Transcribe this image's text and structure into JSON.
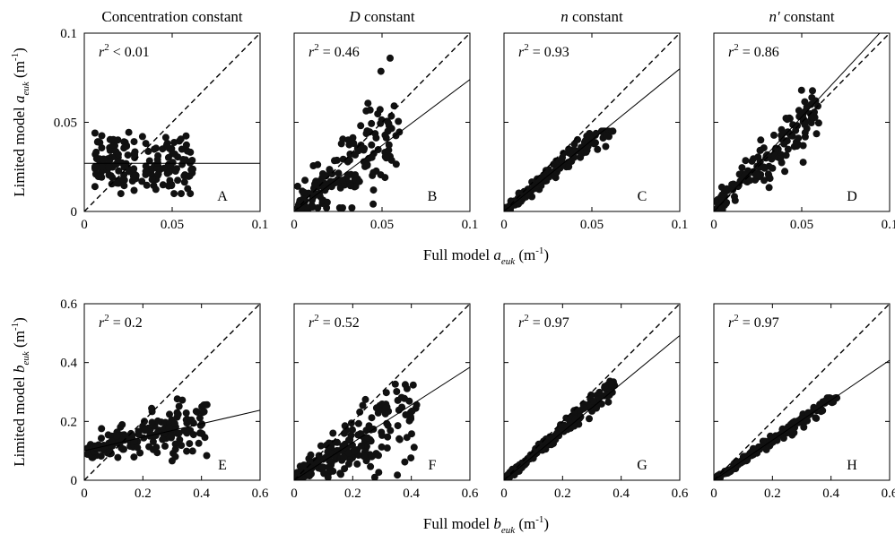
{
  "column_titles": [
    {
      "prefix": "",
      "ital": "",
      "suffix": "Concentration constant"
    },
    {
      "prefix": "",
      "ital": "D",
      "suffix": " constant"
    },
    {
      "prefix": "",
      "ital": "n",
      "suffix": " constant"
    },
    {
      "prefix": "",
      "ital": "n′",
      "suffix": " constant"
    }
  ],
  "rows": [
    {
      "ylabel": {
        "pre": "Limited model ",
        "var": "a",
        "sub": "euk",
        "unit": " (m",
        "sup": "-1",
        "close": ")"
      },
      "xlabel": {
        "pre": "Full model ",
        "var": "a",
        "sub": "euk",
        "unit": " (m",
        "sup": "-1",
        "close": ")"
      },
      "ylim": [
        0,
        0.1
      ],
      "xlim": [
        0,
        0.1
      ],
      "yticks": [
        {
          "v": 0,
          "t": "0"
        },
        {
          "v": 0.05,
          "t": "0.05"
        },
        {
          "v": 0.1,
          "t": "0.1"
        }
      ],
      "xticks": [
        {
          "v": 0,
          "t": "0"
        },
        {
          "v": 0.05,
          "t": "0.05"
        },
        {
          "v": 0.1,
          "t": "0.1"
        }
      ]
    },
    {
      "ylabel": {
        "pre": "Limited model ",
        "var": "b",
        "sub": "euk",
        "unit": " (m",
        "sup": "-1",
        "close": ")"
      },
      "xlabel": {
        "pre": "Full model ",
        "var": "b",
        "sub": "euk",
        "unit": " (m",
        "sup": "-1",
        "close": ")"
      },
      "ylim": [
        0,
        0.6
      ],
      "xlim": [
        0,
        0.6
      ],
      "yticks": [
        {
          "v": 0,
          "t": "0"
        },
        {
          "v": 0.2,
          "t": "0.2"
        },
        {
          "v": 0.4,
          "t": "0.4"
        },
        {
          "v": 0.6,
          "t": "0.6"
        }
      ],
      "xticks": [
        {
          "v": 0,
          "t": "0"
        },
        {
          "v": 0.2,
          "t": "0.2"
        },
        {
          "v": 0.4,
          "t": "0.4"
        },
        {
          "v": 0.6,
          "t": "0.6"
        }
      ]
    }
  ],
  "chart_data": [
    {
      "type": "scatter",
      "panel": "A",
      "row": 0,
      "col": 0,
      "r2_label": "< 0.01",
      "fit_line": {
        "slope": 0,
        "intercept": 0.027
      },
      "one_to_one_line": true,
      "cluster": {
        "kind": "scatter",
        "n": 170,
        "x_range": [
          0.006,
          0.062
        ],
        "y_center": 0.027,
        "y_spread": 0.008,
        "y_range": [
          0.01,
          0.053
        ]
      }
    },
    {
      "type": "scatter",
      "panel": "B",
      "row": 0,
      "col": 1,
      "r2_label": "= 0.46",
      "fit_line": {
        "slope": 0.74,
        "intercept": 0.0
      },
      "one_to_one_line": true,
      "cluster": {
        "kind": "scatter",
        "n": 170,
        "x_range": [
          0.002,
          0.06
        ],
        "trend_slope": 0.8,
        "y_spread": 0.012,
        "y_range": [
          0.002,
          0.086
        ]
      }
    },
    {
      "type": "scatter",
      "panel": "C",
      "row": 0,
      "col": 2,
      "r2_label": "= 0.93",
      "fit_line": {
        "slope": 0.8,
        "intercept": 0.0
      },
      "one_to_one_line": true,
      "cluster": {
        "kind": "scatter",
        "n": 170,
        "x_range": [
          0.001,
          0.062
        ],
        "trend_slope": 0.8,
        "y_spread": 0.003,
        "y_range": [
          0.001,
          0.045
        ]
      }
    },
    {
      "type": "scatter",
      "panel": "D",
      "row": 0,
      "col": 3,
      "r2_label": "= 0.86",
      "fit_line": {
        "slope": 1.06,
        "intercept": 0.0
      },
      "one_to_one_line": true,
      "cluster": {
        "kind": "scatter",
        "n": 170,
        "x_range": [
          0.001,
          0.06
        ],
        "trend_slope": 0.98,
        "y_spread": 0.007,
        "y_range": [
          0.001,
          0.068
        ]
      }
    },
    {
      "type": "scatter",
      "panel": "E",
      "row": 1,
      "col": 0,
      "r2_label": "= 0.2",
      "fit_line": {
        "slope": 0.23,
        "intercept": 0.1
      },
      "one_to_one_line": true,
      "cluster": {
        "kind": "scatter",
        "n": 190,
        "x_range": [
          0.01,
          0.42
        ],
        "trend_slope": 0.23,
        "intercept": 0.1,
        "y_spread": 0.04,
        "y_range": [
          0.05,
          0.34
        ]
      }
    },
    {
      "type": "scatter",
      "panel": "F",
      "row": 1,
      "col": 1,
      "r2_label": "= 0.52",
      "fit_line": {
        "slope": 0.64,
        "intercept": 0.0
      },
      "one_to_one_line": true,
      "cluster": {
        "kind": "scatter",
        "n": 190,
        "x_range": [
          0.01,
          0.42
        ],
        "trend_slope": 0.58,
        "y_spread": 0.06,
        "y_range": [
          0.01,
          0.49
        ]
      }
    },
    {
      "type": "scatter",
      "panel": "G",
      "row": 1,
      "col": 2,
      "r2_label": "= 0.97",
      "fit_line": {
        "slope": 0.82,
        "intercept": 0.0
      },
      "one_to_one_line": true,
      "cluster": {
        "kind": "scatter",
        "n": 190,
        "x_range": [
          0.005,
          0.38
        ],
        "trend_slope": 0.86,
        "y_spread": 0.014,
        "y_range": [
          0.005,
          0.4
        ]
      }
    },
    {
      "type": "scatter",
      "panel": "H",
      "row": 1,
      "col": 3,
      "r2_label": "= 0.97",
      "fit_line": {
        "slope": 0.68,
        "intercept": 0.0
      },
      "one_to_one_line": true,
      "cluster": {
        "kind": "scatter",
        "n": 190,
        "x_range": [
          0.005,
          0.42
        ],
        "trend_slope": 0.68,
        "y_spread": 0.011,
        "y_range": [
          0.005,
          0.28
        ]
      }
    }
  ],
  "style": {
    "marker_color": "#111111",
    "line_color": "#000000",
    "background": "#ffffff"
  }
}
